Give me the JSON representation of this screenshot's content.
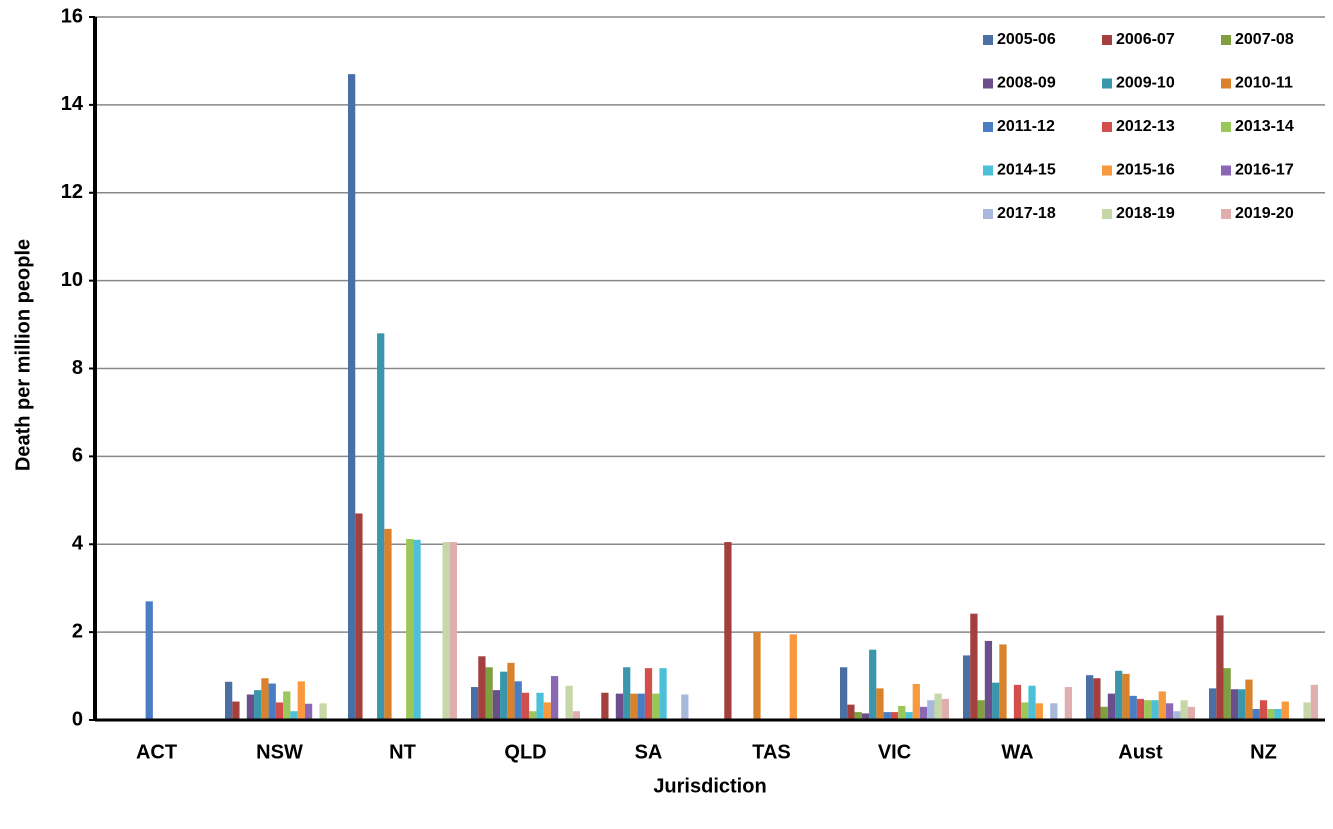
{
  "chart_data": {
    "type": "bar",
    "x_label": "Jurisdiction",
    "y_label": "Death per million people",
    "categories": [
      "ACT",
      "NSW",
      "NT",
      "QLD",
      "SA",
      "TAS",
      "VIC",
      "WA",
      "Aust",
      "NZ"
    ],
    "ylim": [
      0,
      16
    ],
    "yticks": [
      0,
      2,
      4,
      6,
      8,
      10,
      12,
      14,
      16
    ],
    "grid": true,
    "legend": "top-right",
    "series": [
      {
        "name": "2005-06",
        "color": "#4a6fa5",
        "values": [
          0,
          0.87,
          14.7,
          0.75,
          0,
          0,
          1.2,
          1.47,
          1.02,
          0.72
        ]
      },
      {
        "name": "2006-07",
        "color": "#a33f3c",
        "values": [
          0,
          0.42,
          4.7,
          1.45,
          0.62,
          4.05,
          0.35,
          2.42,
          0.95,
          2.38
        ]
      },
      {
        "name": "2007-08",
        "color": "#7fa040",
        "values": [
          0,
          0,
          0,
          1.2,
          0,
          0,
          0.18,
          0.45,
          0.3,
          1.18
        ]
      },
      {
        "name": "2008-09",
        "color": "#6a4f8c",
        "values": [
          0,
          0.58,
          0,
          0.68,
          0.6,
          0,
          0.15,
          1.8,
          0.6,
          0.7
        ]
      },
      {
        "name": "2009-10",
        "color": "#3a96aa",
        "values": [
          0,
          0.68,
          8.8,
          1.1,
          1.2,
          0,
          1.6,
          0.85,
          1.12,
          0.7
        ]
      },
      {
        "name": "2010-11",
        "color": "#d9822b",
        "values": [
          0,
          0.95,
          4.35,
          1.3,
          0.6,
          2.0,
          0.72,
          1.72,
          1.05,
          0.92
        ]
      },
      {
        "name": "2011-12",
        "color": "#4a7ec4",
        "values": [
          2.7,
          0.83,
          0,
          0.88,
          0.6,
          0,
          0.18,
          0,
          0.55,
          0.25
        ]
      },
      {
        "name": "2012-13",
        "color": "#d24f4b",
        "values": [
          0,
          0.4,
          0,
          0.62,
          1.18,
          0,
          0.18,
          0.8,
          0.48,
          0.45
        ]
      },
      {
        "name": "2013-14",
        "color": "#9bc65a",
        "values": [
          0,
          0.65,
          4.12,
          0.2,
          0.6,
          0,
          0.32,
          0.4,
          0.45,
          0.25
        ]
      },
      {
        "name": "2014-15",
        "color": "#4cc0d8",
        "values": [
          0,
          0.2,
          4.1,
          0.62,
          1.18,
          0,
          0.18,
          0.78,
          0.45,
          0.25
        ]
      },
      {
        "name": "2015-16",
        "color": "#f7993c",
        "values": [
          0,
          0.88,
          0,
          0.4,
          0,
          1.95,
          0.82,
          0.38,
          0.65,
          0.42
        ]
      },
      {
        "name": "2016-17",
        "color": "#8a68b4",
        "values": [
          0,
          0.37,
          0,
          1.0,
          0,
          0,
          0.3,
          0,
          0.38,
          0
        ]
      },
      {
        "name": "2017-18",
        "color": "#a8b8dc",
        "values": [
          0,
          0,
          0,
          0,
          0.58,
          0,
          0.45,
          0.38,
          0.2,
          0
        ]
      },
      {
        "name": "2018-19",
        "color": "#c6d8a8",
        "values": [
          0,
          0.38,
          4.05,
          0.78,
          0,
          0,
          0.6,
          0,
          0.45,
          0.4
        ]
      },
      {
        "name": "2019-20",
        "color": "#e0aeae",
        "values": [
          0,
          0,
          4.05,
          0.2,
          0,
          0,
          0.48,
          0.75,
          0.3,
          0.8
        ]
      }
    ]
  }
}
